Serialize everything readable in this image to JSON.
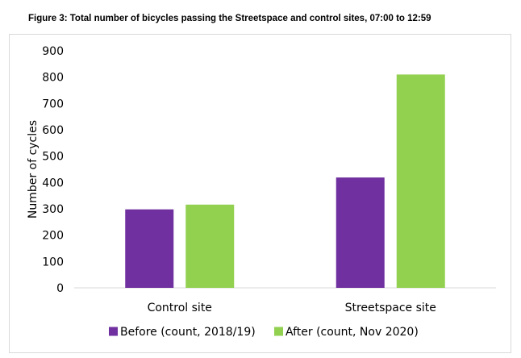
{
  "title": "Figure 3: Total number of bicycles passing the Streetspace and control sites, 07:00 to 12:59",
  "colors": {
    "before": "#7030a0",
    "after": "#92d050",
    "axis": "#d9d9d9"
  },
  "chart_data": {
    "type": "bar",
    "categories": [
      "Control site",
      "Streetspace site"
    ],
    "series": [
      {
        "name": "Before (count, 2018/19)",
        "values": [
          298,
          419
        ]
      },
      {
        "name": "After (count, Nov 2020)",
        "values": [
          316,
          810
        ]
      }
    ],
    "xlabel": "",
    "ylabel": "Number of cycles",
    "ylim": [
      0,
      900
    ],
    "yticks": [
      "0",
      "100",
      "200",
      "300",
      "400",
      "500",
      "600",
      "700",
      "800",
      "900"
    ],
    "grid": false,
    "legend": "bottom"
  }
}
